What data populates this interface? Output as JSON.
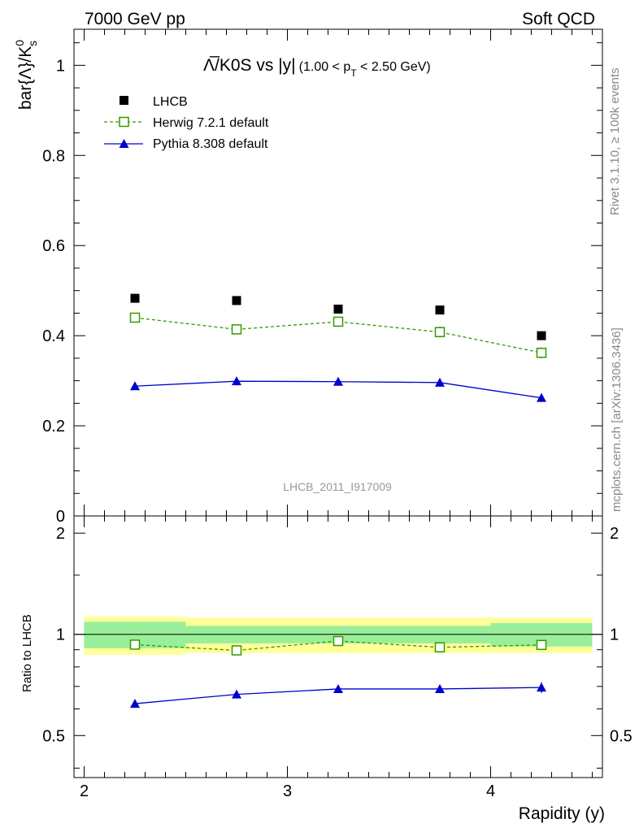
{
  "header": {
    "left": "7000 GeV pp",
    "right": "Soft QCD"
  },
  "side_labels": {
    "rivet": "Rivet 3.1.10, ≥ 100k events",
    "mcplots": "mcplots.cern.ch [arXiv:1306.3436]"
  },
  "watermark": "LHCB_2011_I917009",
  "chart_data": {
    "type": "scatter",
    "title": {
      "main": "Λ̅/K0S vs |y|",
      "cut_open": "(1.00 < p",
      "cut_sub": "T",
      "cut_close": " < 2.50 GeV)"
    },
    "ylabel": {
      "main": "bar{Λ}/K",
      "sup": "0",
      "sub": "s"
    },
    "ratio_ylabel": "Ratio to LHCB",
    "xlabel": "Rapidity (y)",
    "x": [
      2.25,
      2.75,
      3.25,
      3.75,
      4.25
    ],
    "x_bins": [
      [
        2.0,
        2.5
      ],
      [
        2.5,
        3.0
      ],
      [
        3.0,
        3.5
      ],
      [
        3.5,
        4.0
      ],
      [
        4.0,
        4.5
      ]
    ],
    "xlim": [
      1.95,
      4.55
    ],
    "ylim": [
      0,
      1.08
    ],
    "ratio_ylim": [
      0.375,
      2.25
    ],
    "x_ticks": [
      "2",
      "3",
      "4"
    ],
    "y_ticks": [
      "0",
      "0.2",
      "0.4",
      "0.6",
      "0.8",
      "1"
    ],
    "ratio_y_ticks": [
      "0.5",
      "1",
      "2"
    ],
    "legend_placement": "top-left",
    "series": [
      {
        "name": "LHCB",
        "color": "#000000",
        "marker": "filled-square",
        "values": [
          0.483,
          0.478,
          0.459,
          0.457,
          0.4
        ],
        "ratio": [
          1,
          1,
          1,
          1,
          1
        ],
        "band_inner": [
          0.09,
          0.06,
          0.06,
          0.06,
          0.08
        ],
        "band_outer": [
          0.13,
          0.12,
          0.12,
          0.12,
          0.12
        ]
      },
      {
        "name": "Herwig 7.2.1 default",
        "color": "#339900",
        "marker": "open-square",
        "line": "dashed",
        "values": [
          0.44,
          0.414,
          0.431,
          0.408,
          0.362
        ],
        "errors": [
          0.01,
          0.01,
          0.01,
          0.012,
          0.012
        ],
        "ratio": [
          0.932,
          0.896,
          0.955,
          0.915,
          0.93
        ],
        "ratio_errors": [
          0.01,
          0.01,
          0.012,
          0.012,
          0.015
        ]
      },
      {
        "name": "Pythia 8.308 default",
        "color": "#0000cc",
        "marker": "filled-triangle",
        "line": "solid",
        "values": [
          0.288,
          0.299,
          0.298,
          0.296,
          0.262
        ],
        "errors": [
          0.007,
          0.009,
          0.009,
          0.009,
          0.009
        ],
        "ratio": [
          0.622,
          0.663,
          0.688,
          0.688,
          0.695
        ],
        "ratio_errors": [
          0.015,
          0.017,
          0.018,
          0.02,
          0.025
        ]
      }
    ]
  }
}
